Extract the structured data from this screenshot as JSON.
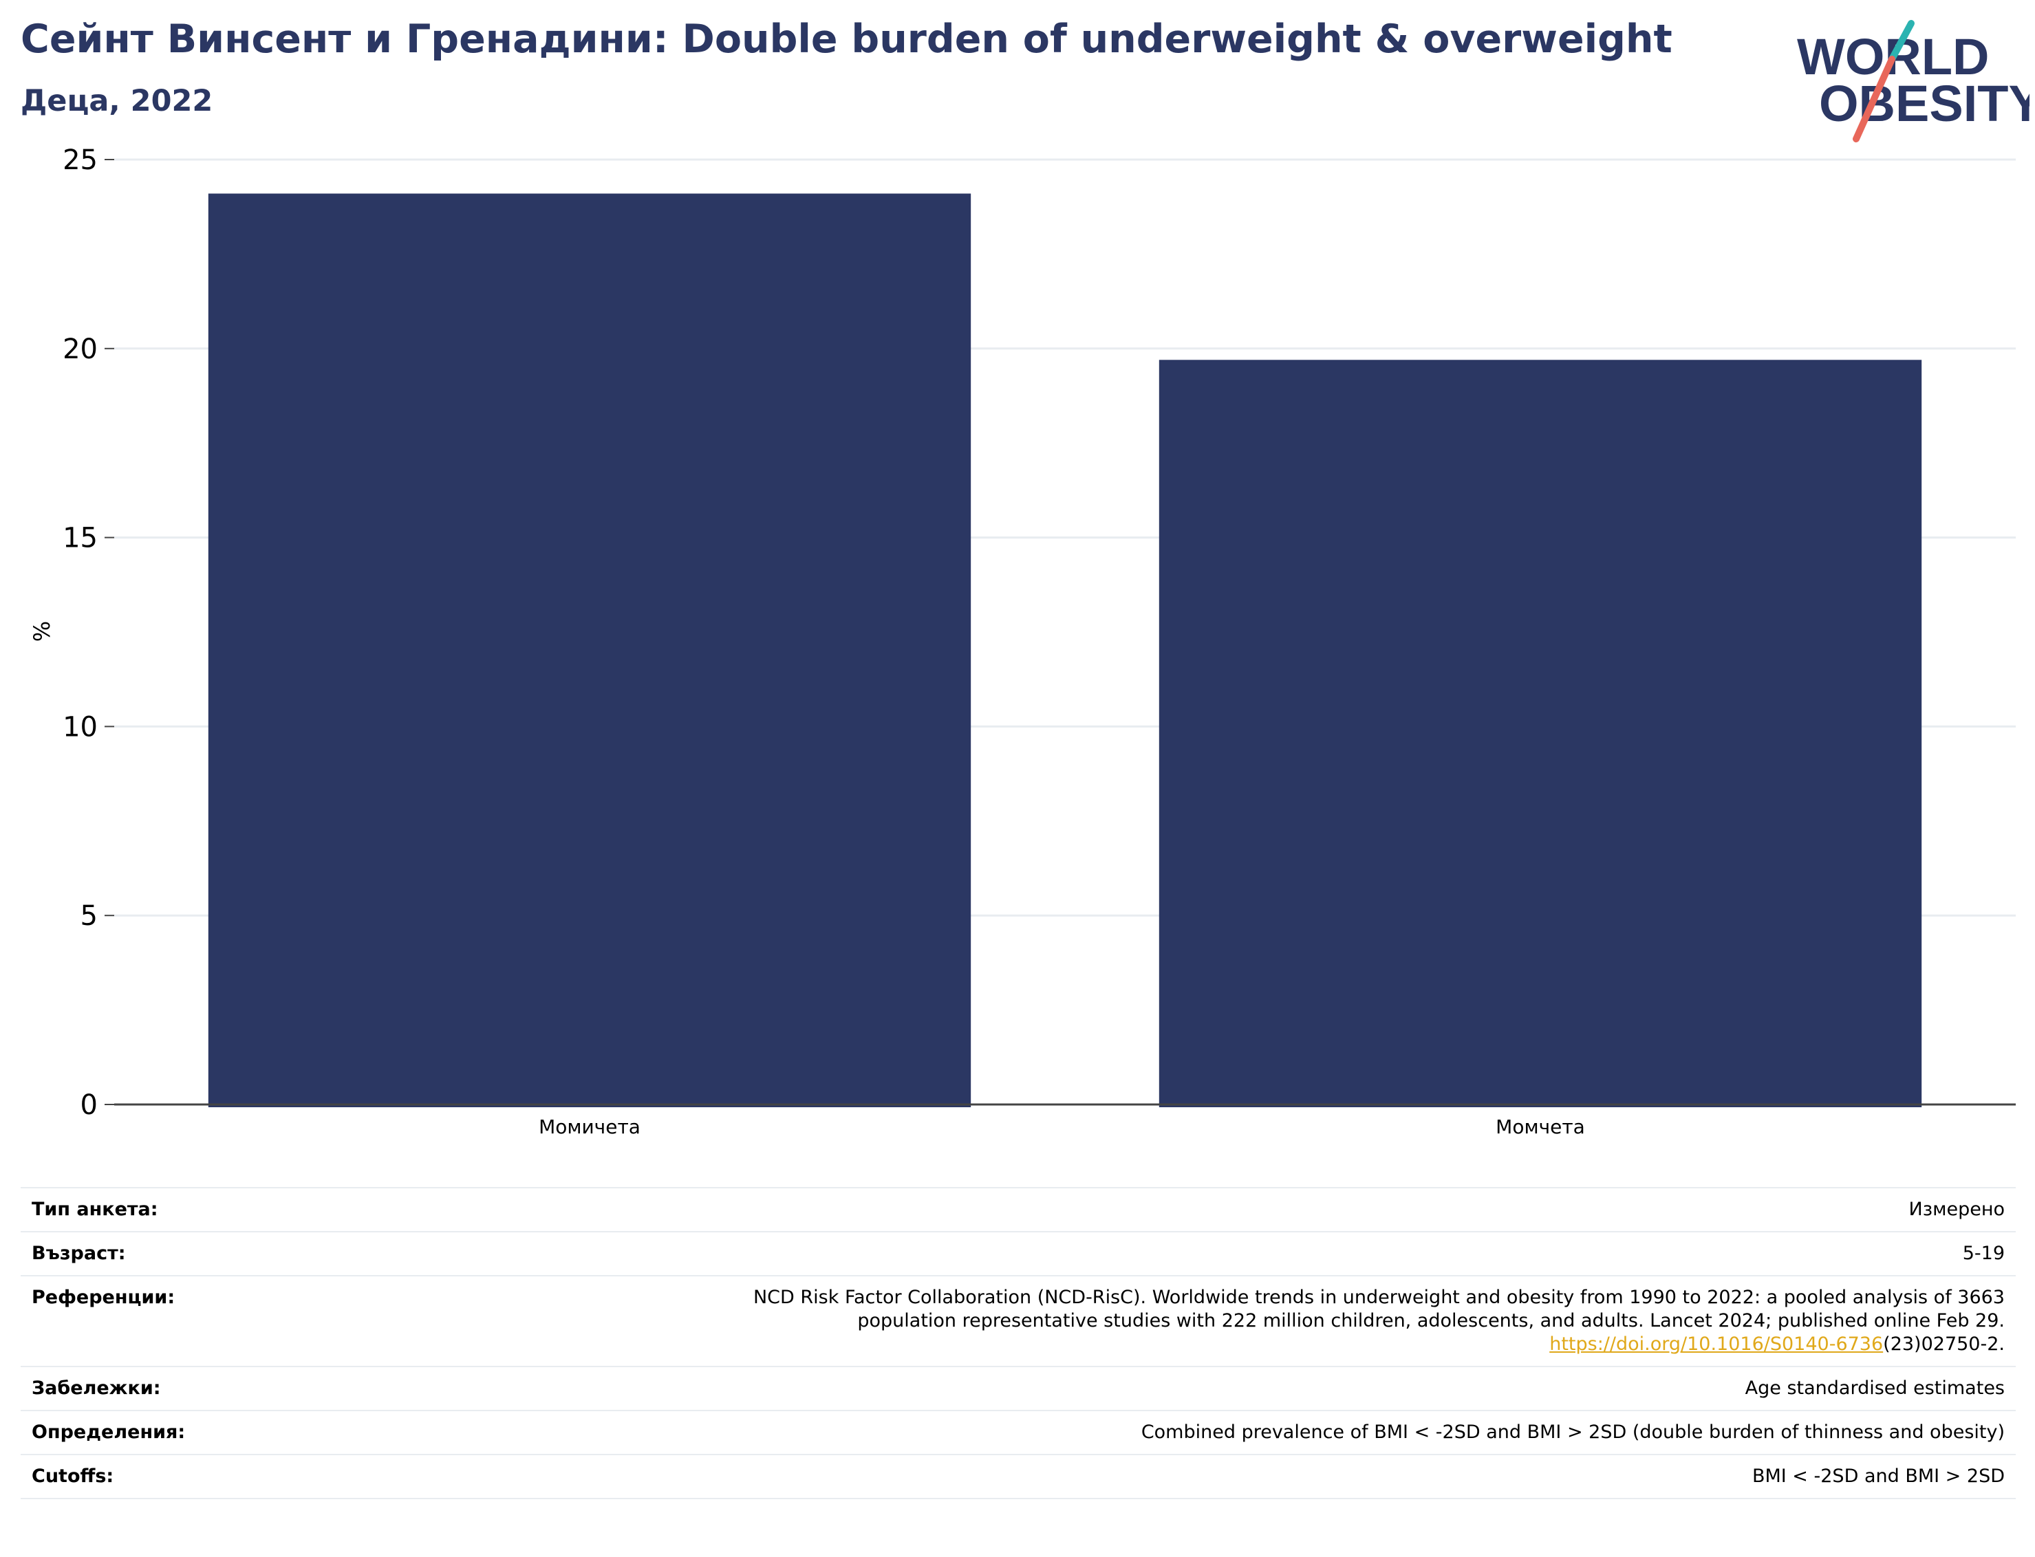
{
  "header": {
    "title": "Сейнт Винсент и Гренадини: Double burden of underweight & overweight",
    "subtitle": "Деца, 2022"
  },
  "logo": {
    "line1": "WORLD",
    "line2": "OBESITY",
    "colors": {
      "text": "#2b3763",
      "slash_teal": "#2bb3b1",
      "slash_red": "#e8675a"
    }
  },
  "chart_data": {
    "type": "bar",
    "categories": [
      "Момичета",
      "Момчета"
    ],
    "values": [
      24.1,
      19.7
    ],
    "ylabel": "%",
    "ylim": [
      0,
      25
    ],
    "yticks": [
      0,
      5,
      10,
      15,
      20,
      25
    ],
    "grid": true,
    "bar_color": "#2b3763"
  },
  "meta": {
    "rows": [
      {
        "key": "Тип анкета:",
        "value": "Измерено"
      },
      {
        "key": "Възраст:",
        "value": "5-19"
      },
      {
        "key": "Референции:",
        "line1": "NCD Risk Factor Collaboration (NCD-RisC). Worldwide trends in underweight and obesity from 1990 to 2022: a pooled analysis of 3663",
        "line2": "population representative studies with 222 million children, adolescents, and adults. Lancet 2024; published online Feb 29.",
        "link": "https://doi.org/10.1016/S0140-6736",
        "tail": "(23)02750-2."
      },
      {
        "key": "Забележки:",
        "value": "Age standardised estimates"
      },
      {
        "key": "Определения:",
        "value": "Combined prevalence of BMI < -2SD and BMI > 2SD (double burden of thinness and obesity)"
      },
      {
        "key": "Cutoffs:",
        "value": "BMI < -2SD and BMI > 2SD"
      }
    ]
  }
}
